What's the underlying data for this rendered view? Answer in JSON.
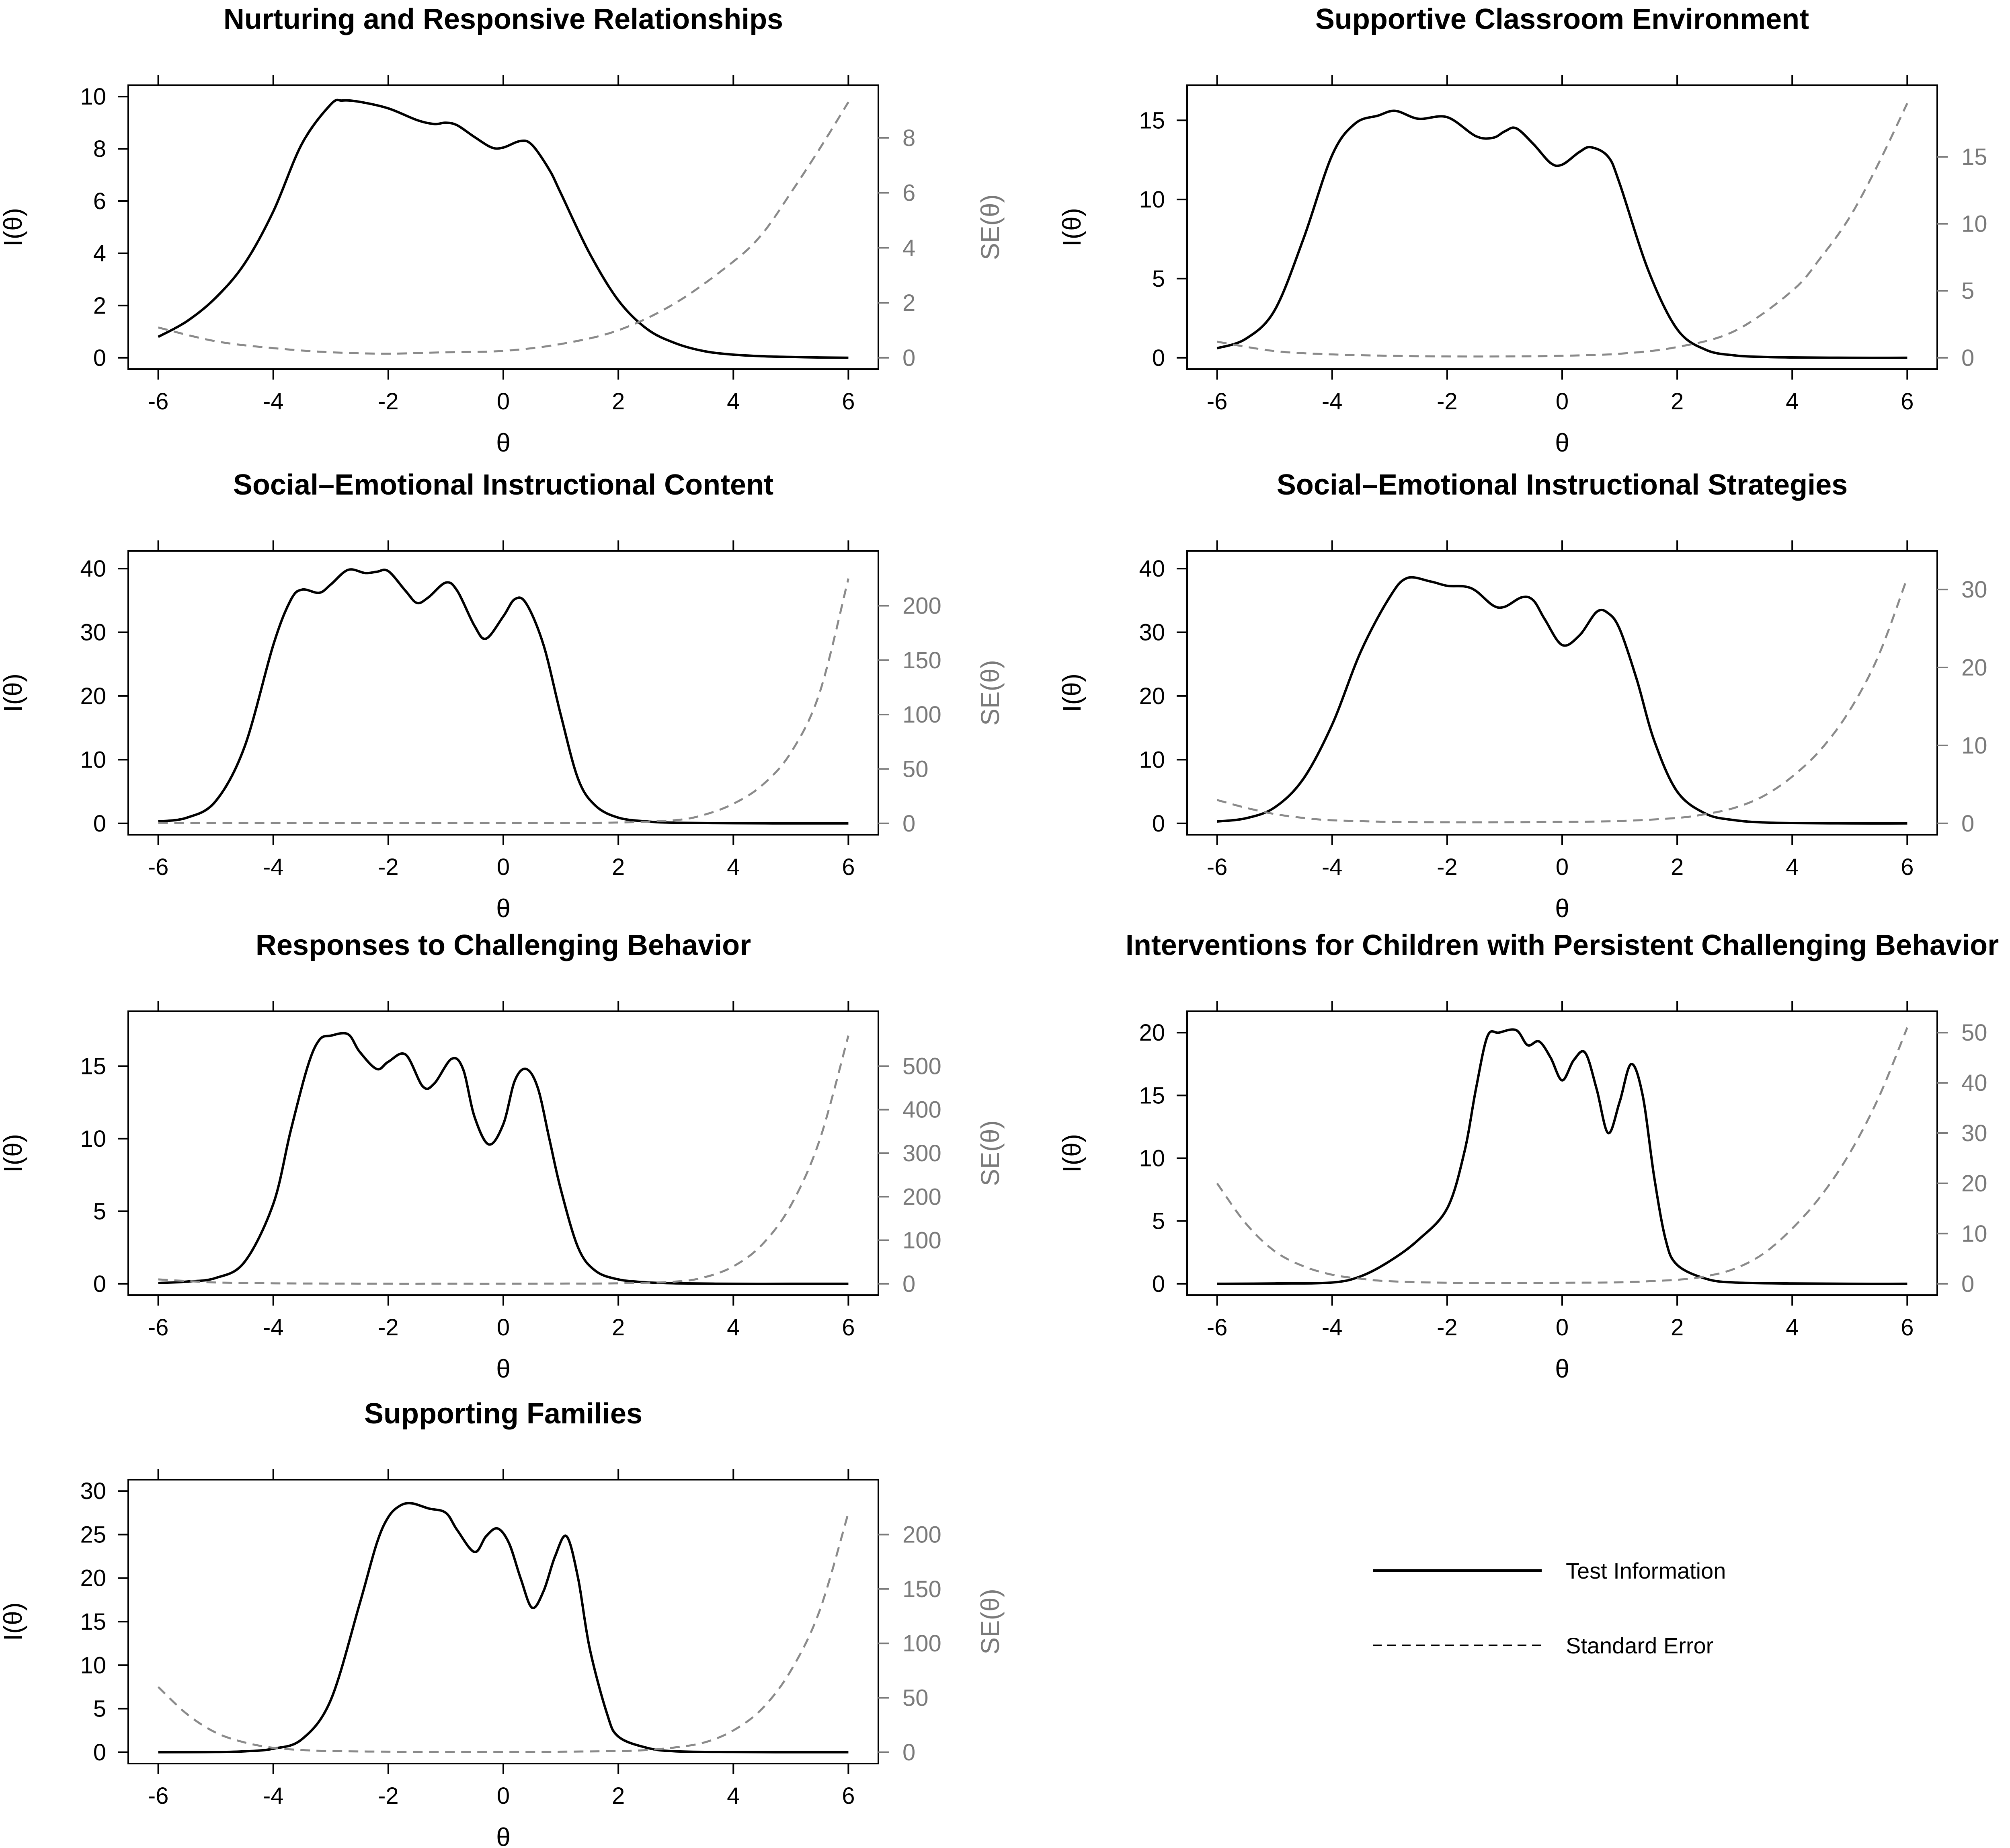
{
  "chart_data": [
    {
      "type": "line",
      "title": "Nurturing and Responsive Relationships",
      "xlabel": "θ",
      "ylabel": "I(θ)",
      "y2label": "SE(θ)",
      "xlim": [
        -6,
        6
      ],
      "ylim": [
        0,
        10
      ],
      "y2lim": [
        0,
        9.5
      ],
      "xticks": [
        -6,
        -4,
        -2,
        0,
        2,
        4,
        6
      ],
      "yticks": [
        0,
        2,
        4,
        6,
        8,
        10
      ],
      "y2ticks": [
        0,
        2,
        4,
        6,
        8
      ],
      "series": [
        {
          "name": "Test Information",
          "axis": "left",
          "style": "solid",
          "x": [
            -6,
            -5.5,
            -5,
            -4.5,
            -4,
            -3.5,
            -3,
            -2.8,
            -2.5,
            -2,
            -1.5,
            -1.2,
            -1,
            -0.8,
            -0.5,
            -0.2,
            0,
            0.3,
            0.5,
            0.8,
            1,
            1.5,
            2,
            2.5,
            3,
            3.5,
            4,
            4.5,
            5,
            5.5,
            6
          ],
          "y": [
            0.8,
            1.4,
            2.3,
            3.6,
            5.6,
            8.2,
            9.7,
            9.85,
            9.8,
            9.55,
            9.1,
            8.95,
            9.0,
            8.9,
            8.45,
            8.05,
            8.05,
            8.3,
            8.15,
            7.2,
            6.3,
            4.0,
            2.2,
            1.1,
            0.55,
            0.25,
            0.12,
            0.06,
            0.03,
            0.01,
            0.0
          ]
        },
        {
          "name": "Standard Error",
          "axis": "right",
          "style": "dashed",
          "x": [
            -6,
            -5,
            -4,
            -3,
            -2,
            -1,
            0,
            1,
            2,
            3,
            4,
            4.5,
            5,
            5.5,
            6
          ],
          "y": [
            1.1,
            0.6,
            0.35,
            0.2,
            0.15,
            0.2,
            0.25,
            0.5,
            1.0,
            2.0,
            3.5,
            4.5,
            6.0,
            7.6,
            9.3
          ]
        }
      ]
    },
    {
      "type": "line",
      "title": "Supportive Classroom Environment",
      "xlabel": "θ",
      "ylabel": "I(θ)",
      "y2label": "SE(θ)",
      "xlim": [
        -6,
        6
      ],
      "ylim": [
        0,
        16.5
      ],
      "y2lim": [
        0,
        19.5
      ],
      "xticks": [
        -6,
        -4,
        -2,
        0,
        2,
        4,
        6
      ],
      "yticks": [
        0,
        5,
        10,
        15
      ],
      "y2ticks": [
        0,
        5,
        10,
        15
      ],
      "series": [
        {
          "name": "Test Information",
          "axis": "left",
          "style": "solid",
          "x": [
            -6,
            -5.5,
            -5,
            -4.5,
            -4,
            -3.6,
            -3.2,
            -2.9,
            -2.5,
            -2,
            -1.5,
            -1.2,
            -1,
            -0.8,
            -0.5,
            -0.2,
            0,
            0.3,
            0.5,
            0.8,
            1,
            1.5,
            2,
            2.5,
            3,
            3.5,
            4,
            5,
            6
          ],
          "y": [
            0.6,
            1.2,
            3.0,
            7.5,
            12.8,
            14.8,
            15.3,
            15.6,
            15.1,
            15.2,
            14.0,
            13.9,
            14.3,
            14.5,
            13.5,
            12.3,
            12.2,
            13.0,
            13.3,
            12.7,
            11.0,
            5.5,
            1.8,
            0.5,
            0.15,
            0.05,
            0.02,
            0.0,
            0.0
          ]
        },
        {
          "name": "Standard Error",
          "axis": "right",
          "style": "dashed",
          "x": [
            -6,
            -5,
            -4,
            -3,
            -2,
            -1,
            0,
            1,
            2,
            3,
            4,
            4.5,
            5,
            5.5,
            6
          ],
          "y": [
            1.2,
            0.5,
            0.25,
            0.15,
            0.1,
            0.1,
            0.15,
            0.3,
            0.8,
            2.0,
            5.0,
            7.5,
            10.5,
            14.5,
            19.0
          ]
        }
      ]
    },
    {
      "type": "line",
      "title": "Social–Emotional Instructional Content",
      "xlabel": "θ",
      "ylabel": "I(θ)",
      "y2label": "SE(θ)",
      "xlim": [
        -6,
        6
      ],
      "ylim": [
        0,
        41
      ],
      "y2lim": [
        0,
        240
      ],
      "xticks": [
        -6,
        -4,
        -2,
        0,
        2,
        4,
        6
      ],
      "yticks": [
        0,
        10,
        20,
        30,
        40
      ],
      "y2ticks": [
        0,
        50,
        100,
        150,
        200
      ],
      "series": [
        {
          "name": "Test Information",
          "axis": "left",
          "style": "solid",
          "x": [
            -6,
            -5.5,
            -5,
            -4.5,
            -4,
            -3.7,
            -3.5,
            -3.2,
            -3,
            -2.7,
            -2.4,
            -2.2,
            -2,
            -1.7,
            -1.5,
            -1.3,
            -1,
            -0.8,
            -0.5,
            -0.3,
            0,
            0.2,
            0.4,
            0.7,
            1,
            1.3,
            1.6,
            2,
            2.5,
            3,
            4,
            5,
            6
          ],
          "y": [
            0.3,
            0.9,
            3.5,
            12.0,
            28.0,
            35.0,
            36.7,
            36.2,
            37.5,
            39.8,
            39.3,
            39.5,
            39.6,
            36.5,
            34.6,
            35.5,
            37.8,
            36.5,
            31.0,
            29.0,
            32.5,
            35.2,
            34.5,
            28.0,
            17.0,
            7.0,
            2.8,
            0.9,
            0.3,
            0.1,
            0.02,
            0.0,
            0.0
          ]
        },
        {
          "name": "Standard Error",
          "axis": "right",
          "style": "dashed",
          "x": [
            -6,
            -5,
            -4,
            -3,
            -2,
            -1,
            0,
            1,
            2,
            3,
            3.5,
            4,
            4.5,
            5,
            5.5,
            6
          ],
          "y": [
            0.5,
            0.3,
            0.2,
            0.2,
            0.15,
            0.15,
            0.2,
            0.3,
            0.8,
            3.0,
            8.0,
            18.0,
            35.0,
            65.0,
            120.0,
            225.0
          ]
        }
      ]
    },
    {
      "type": "line",
      "title": "Social–Emotional Instructional Strategies",
      "xlabel": "θ",
      "ylabel": "I(θ)",
      "y2label": "SE(θ)",
      "xlim": [
        -6,
        6
      ],
      "ylim": [
        0,
        41
      ],
      "y2lim": [
        0,
        33.5
      ],
      "xticks": [
        -6,
        -4,
        -2,
        0,
        2,
        4,
        6
      ],
      "yticks": [
        0,
        10,
        20,
        30,
        40
      ],
      "y2ticks": [
        0,
        10,
        20,
        30
      ],
      "series": [
        {
          "name": "Test Information",
          "axis": "left",
          "style": "solid",
          "x": [
            -6,
            -5.5,
            -5,
            -4.5,
            -4,
            -3.5,
            -3,
            -2.7,
            -2.3,
            -2,
            -1.7,
            -1.5,
            -1.2,
            -1,
            -0.7,
            -0.5,
            -0.3,
            0,
            0.3,
            0.6,
            0.8,
            1,
            1.3,
            1.6,
            2,
            2.5,
            3,
            3.5,
            4,
            5,
            6
          ],
          "y": [
            0.3,
            0.8,
            2.5,
            7.0,
            15.5,
            27.0,
            35.5,
            38.5,
            38.0,
            37.3,
            37.2,
            36.5,
            34.2,
            34.0,
            35.5,
            35.0,
            32.0,
            28.0,
            29.5,
            33.2,
            33.0,
            30.5,
            22.5,
            13.0,
            5.0,
            1.5,
            0.5,
            0.15,
            0.05,
            0.0,
            0.0
          ]
        },
        {
          "name": "Standard Error",
          "axis": "right",
          "style": "dashed",
          "x": [
            -6,
            -5.5,
            -5,
            -4.5,
            -4,
            -3,
            -2,
            -1,
            0,
            1,
            2,
            2.5,
            3,
            3.5,
            4,
            4.5,
            5,
            5.5,
            6
          ],
          "y": [
            3.0,
            2.0,
            1.2,
            0.7,
            0.4,
            0.2,
            0.15,
            0.15,
            0.2,
            0.3,
            0.7,
            1.2,
            2.0,
            3.5,
            6.0,
            9.5,
            14.5,
            21.5,
            31.5
          ]
        }
      ]
    },
    {
      "type": "line",
      "title": "Responses to Challenging Behavior",
      "xlabel": "θ",
      "ylabel": "I(θ)",
      "y2label": "SE(θ)",
      "xlim": [
        -6,
        6
      ],
      "ylim": [
        0,
        18
      ],
      "y2lim": [
        0,
        600
      ],
      "xticks": [
        -6,
        -4,
        -2,
        0,
        2,
        4,
        6
      ],
      "yticks": [
        0,
        5,
        10,
        15
      ],
      "y2ticks": [
        0,
        100,
        200,
        300,
        400,
        500
      ],
      "series": [
        {
          "name": "Test Information",
          "axis": "left",
          "style": "solid",
          "x": [
            -6,
            -5.5,
            -5,
            -4.5,
            -4,
            -3.7,
            -3.4,
            -3.2,
            -3,
            -2.7,
            -2.5,
            -2.2,
            -2,
            -1.7,
            -1.4,
            -1.2,
            -0.9,
            -0.7,
            -0.5,
            -0.25,
            0,
            0.2,
            0.4,
            0.6,
            0.8,
            1,
            1.3,
            1.6,
            2,
            2.5,
            3,
            4,
            5,
            6
          ],
          "y": [
            0.05,
            0.15,
            0.4,
            1.5,
            5.5,
            10.5,
            15.0,
            16.8,
            17.1,
            17.2,
            16.0,
            14.8,
            15.3,
            15.8,
            13.6,
            13.8,
            15.5,
            14.8,
            11.5,
            9.6,
            11.0,
            14.0,
            14.8,
            13.5,
            10.0,
            6.5,
            2.5,
            0.9,
            0.3,
            0.1,
            0.03,
            0.0,
            0.0,
            0.0
          ]
        },
        {
          "name": "Standard Error",
          "axis": "right",
          "style": "dashed",
          "x": [
            -6,
            -5,
            -4,
            -3,
            -2,
            -1,
            0,
            1,
            2,
            3,
            3.5,
            4,
            4.5,
            5,
            5.5,
            6
          ],
          "y": [
            10.0,
            3.0,
            1.0,
            0.5,
            0.3,
            0.3,
            0.3,
            0.5,
            1.0,
            5.0,
            15.0,
            40.0,
            90.0,
            180.0,
            330.0,
            570.0
          ]
        }
      ]
    },
    {
      "type": "line",
      "title": "Interventions for Children with Persistent Challenging Behavior",
      "xlabel": "θ",
      "ylabel": "I(θ)",
      "y2label": "SE(θ)",
      "xlim": [
        -6,
        6
      ],
      "ylim": [
        0,
        20.8
      ],
      "y2lim": [
        0,
        52
      ],
      "xticks": [
        -6,
        -4,
        -2,
        0,
        2,
        4,
        6
      ],
      "yticks": [
        0,
        5,
        10,
        15,
        20
      ],
      "y2ticks": [
        0,
        10,
        20,
        30,
        40,
        50
      ],
      "series": [
        {
          "name": "Test Information",
          "axis": "left",
          "style": "solid",
          "x": [
            -6,
            -5,
            -4,
            -3.5,
            -3,
            -2.5,
            -2,
            -1.7,
            -1.5,
            -1.3,
            -1.1,
            -0.8,
            -0.6,
            -0.4,
            -0.2,
            0,
            0.2,
            0.4,
            0.6,
            0.8,
            1,
            1.2,
            1.4,
            1.6,
            1.8,
            2,
            2.5,
            3,
            4,
            5,
            6
          ],
          "y": [
            0.0,
            0.02,
            0.1,
            0.6,
            1.8,
            3.5,
            6.0,
            10.5,
            15.5,
            19.7,
            20.0,
            20.2,
            19.0,
            19.3,
            18.0,
            16.2,
            17.8,
            18.4,
            15.5,
            12.0,
            14.5,
            17.5,
            15.0,
            8.5,
            3.5,
            1.5,
            0.4,
            0.1,
            0.02,
            0.0,
            0.0
          ]
        },
        {
          "name": "Standard Error",
          "axis": "right",
          "style": "dashed",
          "x": [
            -6,
            -5.5,
            -5,
            -4.5,
            -4,
            -3.5,
            -3,
            -2,
            -1,
            0,
            1,
            2,
            2.5,
            3,
            3.5,
            4,
            4.5,
            5,
            5.5,
            6
          ],
          "y": [
            20.0,
            12.0,
            6.5,
            3.5,
            1.8,
            1.0,
            0.5,
            0.2,
            0.15,
            0.2,
            0.3,
            0.8,
            1.5,
            3.0,
            6.0,
            11.0,
            17.5,
            26.0,
            37.0,
            51.0
          ]
        }
      ]
    },
    {
      "type": "line",
      "title": "Supporting Families",
      "xlabel": "θ",
      "ylabel": "I(θ)",
      "y2label": "SE(θ)",
      "xlim": [
        -6,
        6
      ],
      "ylim": [
        0,
        30
      ],
      "y2lim": [
        0,
        240
      ],
      "xticks": [
        -6,
        -4,
        -2,
        0,
        2,
        4,
        6
      ],
      "yticks": [
        0,
        5,
        10,
        15,
        20,
        25,
        30
      ],
      "y2ticks": [
        0,
        50,
        100,
        150,
        200
      ],
      "series": [
        {
          "name": "Test Information",
          "axis": "left",
          "style": "solid",
          "x": [
            -6,
            -5,
            -4.5,
            -4,
            -3.5,
            -3,
            -2.5,
            -2.2,
            -2,
            -1.8,
            -1.6,
            -1.3,
            -1,
            -0.8,
            -0.5,
            -0.3,
            -0.1,
            0.1,
            0.3,
            0.5,
            0.7,
            0.9,
            1.1,
            1.3,
            1.5,
            1.8,
            2,
            2.5,
            3,
            4,
            5,
            6
          ],
          "y": [
            0.0,
            0.02,
            0.1,
            0.4,
            1.5,
            6.0,
            17.0,
            24.0,
            27.0,
            28.3,
            28.6,
            28.0,
            27.5,
            25.5,
            23.0,
            24.8,
            25.7,
            24.0,
            20.0,
            16.6,
            18.5,
            22.5,
            24.8,
            20.0,
            12.0,
            4.5,
            1.8,
            0.5,
            0.1,
            0.02,
            0.0,
            0.0
          ]
        },
        {
          "name": "Standard Error",
          "axis": "right",
          "style": "dashed",
          "x": [
            -6,
            -5.5,
            -5,
            -4.5,
            -4,
            -3.5,
            -3,
            -2,
            -1,
            0,
            1,
            2,
            2.5,
            3,
            3.5,
            4,
            4.5,
            5,
            5.5,
            6
          ],
          "y": [
            60.0,
            35.0,
            18.0,
            9.0,
            4.0,
            2.0,
            1.0,
            0.5,
            0.4,
            0.4,
            0.5,
            1.0,
            2.0,
            4.5,
            9.0,
            20.0,
            40.0,
            75.0,
            130.0,
            220.0
          ]
        }
      ]
    }
  ],
  "legend": {
    "items": [
      {
        "label": "Test Information",
        "style": "solid"
      },
      {
        "label": "Standard Error",
        "style": "dashed"
      }
    ]
  }
}
